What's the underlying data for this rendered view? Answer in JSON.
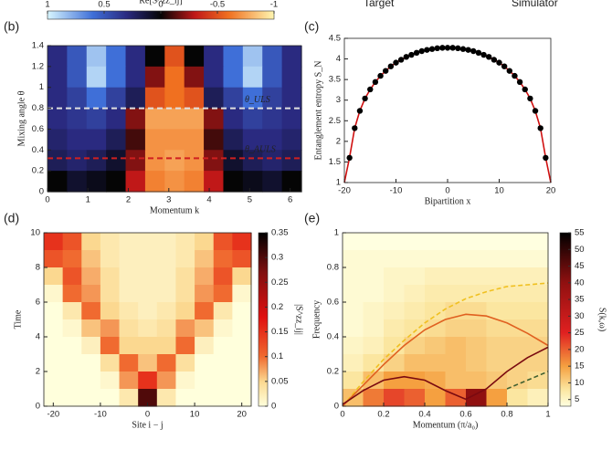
{
  "header": {
    "left": "Target",
    "right": "Simulator"
  },
  "chart_data": [
    {
      "type": "heatmap",
      "panel": "(b)",
      "xlabel": "Momentum k",
      "ylabel": "Mixing angle θ",
      "xlim": [
        0,
        6.28
      ],
      "ylim": [
        0,
        1.4
      ],
      "xticks": [
        0,
        1,
        2,
        3,
        4,
        5,
        6
      ],
      "yticks": [
        0,
        0.2,
        0.4,
        0.6,
        0.8,
        1,
        1.2,
        1.4
      ],
      "z": [
        [
          0.3,
          0.5,
          0.85,
          0.6,
          0.3,
          0,
          -0.5,
          0,
          0.3,
          0.6,
          0.85,
          0.5,
          0.3
        ],
        [
          0.3,
          0.5,
          0.9,
          0.6,
          0.3,
          -0.2,
          -0.6,
          -0.2,
          0.3,
          0.6,
          0.9,
          0.5,
          0.3
        ],
        [
          0.3,
          0.4,
          0.6,
          0.4,
          0.2,
          -0.5,
          -0.6,
          -0.5,
          0.2,
          0.4,
          0.6,
          0.4,
          0.3
        ],
        [
          0.3,
          0.35,
          0.4,
          0.3,
          -0.2,
          -0.75,
          -0.75,
          -0.75,
          -0.2,
          0.3,
          0.4,
          0.35,
          0.3
        ],
        [
          0.25,
          0.3,
          0.3,
          0.2,
          -0.1,
          -0.7,
          -0.7,
          -0.7,
          -0.1,
          0.2,
          0.3,
          0.3,
          0.25
        ],
        [
          0.2,
          0.25,
          0.2,
          0.1,
          -0.2,
          -0.7,
          -0.75,
          -0.7,
          -0.2,
          0.1,
          0.2,
          0.25,
          0.2
        ],
        [
          0,
          0.1,
          0.05,
          0,
          -0.3,
          -0.65,
          -0.7,
          -0.65,
          -0.3,
          0,
          0.05,
          0.1,
          0
        ]
      ],
      "colorscale": [
        [
          -1,
          "#fff6b0"
        ],
        [
          -0.6,
          "#f07020"
        ],
        [
          -0.3,
          "#c01818"
        ],
        [
          0,
          "#050505"
        ],
        [
          0.3,
          "#2a2a80"
        ],
        [
          0.6,
          "#3f6fd8"
        ],
        [
          1,
          "#d8f6ff"
        ]
      ],
      "colorbar": {
        "label": "Re[S^zz_ij]",
        "lim": [
          1,
          -1
        ],
        "ticks": [
          1,
          0.5,
          0,
          -0.5,
          -1
        ]
      },
      "hlines": [
        {
          "value": 0.8,
          "color": "#e0e0e0",
          "label": "θ_ULS"
        },
        {
          "value": 0.32,
          "color": "#d02020",
          "label": "θ_AULS"
        }
      ]
    },
    {
      "type": "scatter",
      "panel": "(c)",
      "xlabel": "Bipartition x",
      "ylabel": "Entanglement entropy S_N",
      "xlim": [
        -20,
        20
      ],
      "ylim": [
        1,
        4.5
      ],
      "xticks": [
        -20,
        -10,
        0,
        10,
        20
      ],
      "yticks": [
        1,
        1.5,
        2,
        2.5,
        3,
        3.5,
        4,
        4.5
      ],
      "series": [
        {
          "type": "line",
          "color": "#d01010",
          "x": [
            -20,
            -19,
            -18,
            -17,
            -16,
            -15,
            -14,
            -13,
            -12,
            -11,
            -10,
            -9,
            -8,
            -7,
            -6,
            -5,
            -4,
            -3,
            -2,
            -1,
            0,
            1,
            2,
            3,
            4,
            5,
            6,
            7,
            8,
            9,
            10,
            11,
            12,
            13,
            14,
            15,
            16,
            17,
            18,
            19,
            20
          ],
          "values": [
            1,
            1.6,
            2.32,
            2.74,
            3.04,
            3.26,
            3.44,
            3.59,
            3.71,
            3.82,
            3.91,
            3.98,
            4.05,
            4.1,
            4.15,
            4.19,
            4.22,
            4.24,
            4.26,
            4.27,
            4.27,
            4.27,
            4.26,
            4.24,
            4.22,
            4.19,
            4.15,
            4.1,
            4.05,
            3.98,
            3.91,
            3.82,
            3.71,
            3.59,
            3.44,
            3.26,
            3.04,
            2.74,
            2.32,
            1.6,
            1
          ]
        },
        {
          "type": "scatter",
          "color": "#000000",
          "x": [
            -19,
            -18,
            -17,
            -16,
            -15,
            -14,
            -13,
            -12,
            -11,
            -10,
            -9,
            -8,
            -7,
            -6,
            -5,
            -4,
            -3,
            -2,
            -1,
            0,
            1,
            2,
            3,
            4,
            5,
            6,
            7,
            8,
            9,
            10,
            11,
            12,
            13,
            14,
            15,
            16,
            17,
            18,
            19
          ],
          "values": [
            1.6,
            2.32,
            2.74,
            3.04,
            3.26,
            3.44,
            3.59,
            3.71,
            3.82,
            3.91,
            3.98,
            4.05,
            4.1,
            4.15,
            4.19,
            4.22,
            4.24,
            4.26,
            4.27,
            4.27,
            4.27,
            4.26,
            4.24,
            4.22,
            4.19,
            4.15,
            4.1,
            4.05,
            3.98,
            3.91,
            3.82,
            3.71,
            3.59,
            3.44,
            3.26,
            3.04,
            2.74,
            2.32,
            1.6
          ]
        }
      ]
    },
    {
      "type": "heatmap",
      "panel": "(d)",
      "xlabel": "Site i − j",
      "ylabel": "Time",
      "xlim": [
        -22,
        22
      ],
      "ylim": [
        0,
        10
      ],
      "xticks": [
        -20,
        -10,
        0,
        10,
        20
      ],
      "yticks": [
        0,
        2,
        4,
        6,
        8,
        10
      ],
      "z": [
        [
          0.15,
          0.12,
          0.05,
          0.03,
          0.02,
          0.02,
          0.02,
          0.03,
          0.05,
          0.12,
          0.15
        ],
        [
          0.12,
          0.1,
          0.06,
          0.03,
          0.02,
          0.02,
          0.02,
          0.03,
          0.06,
          0.1,
          0.12
        ],
        [
          0.05,
          0.12,
          0.07,
          0.04,
          0.02,
          0.02,
          0.02,
          0.04,
          0.07,
          0.12,
          0.05
        ],
        [
          0.01,
          0.1,
          0.08,
          0.04,
          0.02,
          0.02,
          0.02,
          0.04,
          0.08,
          0.1,
          0.01
        ],
        [
          0,
          0.03,
          0.1,
          0.05,
          0.03,
          0.02,
          0.03,
          0.05,
          0.1,
          0.03,
          0
        ],
        [
          0,
          0.01,
          0.06,
          0.08,
          0.04,
          0.03,
          0.04,
          0.08,
          0.06,
          0.01,
          0
        ],
        [
          0,
          0,
          0.02,
          0.1,
          0.05,
          0.05,
          0.05,
          0.1,
          0.02,
          0,
          0
        ],
        [
          0,
          0,
          0,
          0.04,
          0.1,
          0.06,
          0.1,
          0.04,
          0,
          0,
          0
        ],
        [
          0,
          0,
          0,
          0.01,
          0.08,
          0.15,
          0.08,
          0.01,
          0,
          0,
          0
        ],
        [
          0,
          0,
          0,
          0,
          0.03,
          0.3,
          0.03,
          0,
          0,
          0,
          0
        ]
      ],
      "colorscale": [
        [
          0,
          "#ffffdc"
        ],
        [
          0.05,
          "#fbd890"
        ],
        [
          0.1,
          "#f06a30"
        ],
        [
          0.18,
          "#e01010"
        ],
        [
          0.27,
          "#801010"
        ],
        [
          0.35,
          "#000000"
        ]
      ],
      "colorbar": {
        "label": "|S^zz_ij|",
        "lim": [
          0,
          0.35
        ],
        "ticks": [
          0,
          0.05,
          0.1,
          0.15,
          0.2,
          0.25,
          0.3,
          0.35
        ]
      }
    },
    {
      "type": "heatmap",
      "panel": "(e)",
      "xlabel": "Momentum (π/a₀)",
      "ylabel": "Frequency",
      "xlim": [
        0,
        1
      ],
      "ylim": [
        0,
        1
      ],
      "xticks": [
        0,
        0.2,
        0.4,
        0.6,
        0.8,
        1
      ],
      "yticks": [
        0,
        0.2,
        0.4,
        0.6,
        0.8,
        1
      ],
      "z": [
        [
          3,
          3,
          3,
          3,
          3,
          3,
          3,
          3,
          3,
          3
        ],
        [
          4,
          4,
          4,
          4,
          4,
          4,
          4,
          4,
          4,
          4
        ],
        [
          4,
          4,
          5,
          5,
          6,
          6,
          6,
          6,
          6,
          6
        ],
        [
          4,
          4,
          5,
          6,
          7,
          7,
          7,
          7,
          7,
          7
        ],
        [
          4,
          5,
          6,
          7,
          8,
          9,
          9,
          8,
          8,
          8
        ],
        [
          4,
          5,
          7,
          8,
          9,
          10,
          10,
          9,
          9,
          9
        ],
        [
          5,
          6,
          8,
          10,
          11,
          12,
          11,
          10,
          10,
          10
        ],
        [
          6,
          8,
          10,
          12,
          12,
          12,
          11,
          10,
          10,
          10
        ],
        [
          8,
          12,
          15,
          15,
          14,
          12,
          12,
          11,
          10,
          9
        ],
        [
          12,
          18,
          22,
          20,
          15,
          20,
          40,
          15,
          8,
          6
        ]
      ],
      "colorscale": [
        [
          3,
          "#ffffe0"
        ],
        [
          8,
          "#fbe6a0"
        ],
        [
          15,
          "#f5a040"
        ],
        [
          25,
          "#e02020"
        ],
        [
          40,
          "#901010"
        ],
        [
          55,
          "#000000"
        ]
      ],
      "colorbar": {
        "label": "S(k,ω)",
        "lim": [
          3,
          55
        ],
        "ticks": [
          5,
          10,
          15,
          20,
          25,
          30,
          35,
          40,
          45,
          50,
          55
        ]
      },
      "series": [
        {
          "color": "#f0c020",
          "dash": true,
          "x": [
            0,
            0.1,
            0.2,
            0.3,
            0.4,
            0.5,
            0.6,
            0.7,
            0.8,
            0.9,
            1
          ],
          "values": [
            0,
            0.14,
            0.27,
            0.38,
            0.48,
            0.56,
            0.62,
            0.66,
            0.69,
            0.7,
            0.71
          ]
        },
        {
          "color": "#e06020",
          "dash": false,
          "x": [
            0,
            0.1,
            0.2,
            0.3,
            0.4,
            0.5,
            0.6,
            0.7,
            0.8,
            0.9,
            1
          ],
          "values": [
            0,
            0.12,
            0.24,
            0.35,
            0.44,
            0.5,
            0.53,
            0.52,
            0.48,
            0.42,
            0.35
          ]
        },
        {
          "color": "#7a0a10",
          "dash": false,
          "x": [
            0,
            0.1,
            0.2,
            0.3,
            0.4,
            0.5,
            0.6,
            0.7,
            0.8,
            0.9,
            1
          ],
          "values": [
            0.01,
            0.09,
            0.15,
            0.17,
            0.15,
            0.09,
            0.04,
            0.1,
            0.2,
            0.28,
            0.34
          ]
        },
        {
          "color": "#406030",
          "dash": true,
          "x": [
            0.8,
            0.9,
            1
          ],
          "values": [
            0.1,
            0.15,
            0.2
          ]
        }
      ]
    }
  ]
}
